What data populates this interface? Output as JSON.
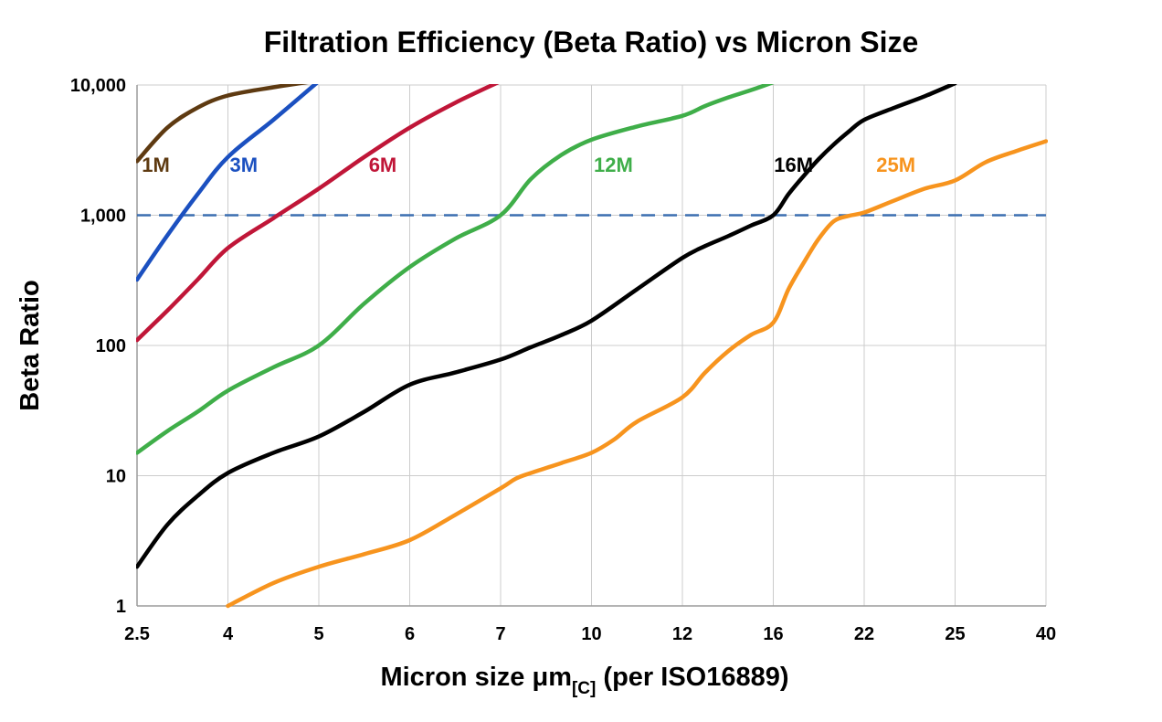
{
  "title": "Filtration Efficiency (Beta Ratio) vs Micron Size",
  "y_axis": {
    "label": "Beta Ratio",
    "tick_labels": [
      "1",
      "10",
      "100",
      "1,000",
      "10,000"
    ],
    "tick_values": [
      1,
      10,
      100,
      1000,
      10000
    ]
  },
  "x_axis": {
    "label_prefix": "Micron size μm",
    "label_subscript": "[C]",
    "label_suffix": " (per ISO16889)",
    "tick_labels": [
      "2.5",
      "4",
      "5",
      "6",
      "7",
      "10",
      "12",
      "16",
      "22",
      "25",
      "40"
    ],
    "categories": [
      2.5,
      4,
      5,
      6,
      7,
      10,
      12,
      16,
      22,
      25,
      40
    ]
  },
  "reference_line": {
    "value": 1000,
    "color": "#3c6eb0",
    "style": "dashed"
  },
  "colors": {
    "background": "#ffffff",
    "grid": "#cccccc",
    "frame": "#9b9b9b",
    "text": "#000000"
  },
  "chart_data": {
    "type": "line",
    "title": "Filtration Efficiency (Beta Ratio) vs Micron Size",
    "xlabel": "Micron size μm[C] (per ISO16889)",
    "ylabel": "Beta Ratio",
    "x_scale": "categorical",
    "y_scale": "log",
    "y_min": 1,
    "y_max": 10000,
    "grid": true,
    "legend_position": "inline-labels",
    "series": [
      {
        "name": "1M",
        "color": "#5e3a11",
        "label": {
          "x": 2.58,
          "y": 2150
        },
        "points": [
          [
            2.5,
            2600
          ],
          [
            3,
            4700
          ],
          [
            3.5,
            6700
          ],
          [
            4,
            8300
          ],
          [
            4.5,
            9600
          ],
          [
            4.95,
            10700
          ]
        ]
      },
      {
        "name": "3M",
        "color": "#1b50c0",
        "label": {
          "x": 4.02,
          "y": 2150
        },
        "points": [
          [
            2.5,
            320
          ],
          [
            3,
            700
          ],
          [
            3.5,
            1450
          ],
          [
            4,
            2800
          ],
          [
            4.5,
            5400
          ],
          [
            5,
            10700
          ]
        ]
      },
      {
        "name": "6M",
        "color": "#c01638",
        "label": {
          "x": 5.55,
          "y": 2150
        },
        "points": [
          [
            2.5,
            110
          ],
          [
            3,
            185
          ],
          [
            3.5,
            320
          ],
          [
            4,
            560
          ],
          [
            4.5,
            950
          ],
          [
            5,
            1600
          ],
          [
            5.5,
            2800
          ],
          [
            6,
            4700
          ],
          [
            6.5,
            7300
          ],
          [
            7,
            10700
          ]
        ]
      },
      {
        "name": "12M",
        "color": "#3fae49",
        "label": {
          "x": 10.05,
          "y": 2150
        },
        "points": [
          [
            2.5,
            15
          ],
          [
            3,
            22
          ],
          [
            3.5,
            31
          ],
          [
            4,
            45
          ],
          [
            4.5,
            68
          ],
          [
            5,
            100
          ],
          [
            5.5,
            210
          ],
          [
            6,
            400
          ],
          [
            6.5,
            660
          ],
          [
            7,
            1000
          ],
          [
            8,
            1900
          ],
          [
            9,
            2900
          ],
          [
            10,
            3800
          ],
          [
            11,
            4800
          ],
          [
            12,
            5800
          ],
          [
            13,
            6900
          ],
          [
            14,
            8000
          ],
          [
            15,
            9100
          ],
          [
            16,
            10500
          ]
        ]
      },
      {
        "name": "16M",
        "color": "#000000",
        "label": {
          "x": 16.05,
          "y": 2150
        },
        "points": [
          [
            2.5,
            2
          ],
          [
            3,
            4.2
          ],
          [
            3.5,
            7
          ],
          [
            4,
            10.5
          ],
          [
            4.5,
            15
          ],
          [
            5,
            20
          ],
          [
            5.5,
            31
          ],
          [
            6,
            50
          ],
          [
            6.5,
            62
          ],
          [
            7,
            78
          ],
          [
            8,
            97
          ],
          [
            9,
            120
          ],
          [
            10,
            155
          ],
          [
            11,
            270
          ],
          [
            12,
            470
          ],
          [
            13,
            580
          ],
          [
            14,
            690
          ],
          [
            15,
            830
          ],
          [
            16,
            1000
          ],
          [
            17,
            1450
          ],
          [
            18,
            2000
          ],
          [
            19,
            2700
          ],
          [
            20,
            3500
          ],
          [
            21,
            4400
          ],
          [
            22,
            5400
          ],
          [
            23,
            6700
          ],
          [
            24,
            8200
          ],
          [
            25,
            10300
          ]
        ]
      },
      {
        "name": "25M",
        "color": "#f7941e",
        "label": {
          "x": 22.4,
          "y": 2150
        },
        "points": [
          [
            4,
            1
          ],
          [
            4.5,
            1.5
          ],
          [
            5,
            2
          ],
          [
            5.5,
            2.5
          ],
          [
            6,
            3.2
          ],
          [
            6.5,
            5
          ],
          [
            7,
            8
          ],
          [
            7.5,
            9.5
          ],
          [
            8,
            10.5
          ],
          [
            9,
            12.5
          ],
          [
            10,
            15
          ],
          [
            10.5,
            19
          ],
          [
            11,
            26
          ],
          [
            12,
            40
          ],
          [
            13,
            62
          ],
          [
            14,
            90
          ],
          [
            15,
            120
          ],
          [
            16,
            150
          ],
          [
            17,
            270
          ],
          [
            18,
            430
          ],
          [
            19,
            660
          ],
          [
            20,
            900
          ],
          [
            21,
            990
          ],
          [
            22,
            1050
          ],
          [
            23,
            1300
          ],
          [
            24,
            1600
          ],
          [
            25,
            1850
          ],
          [
            30,
            2550
          ],
          [
            35,
            3100
          ],
          [
            40,
            3700
          ]
        ]
      }
    ]
  }
}
